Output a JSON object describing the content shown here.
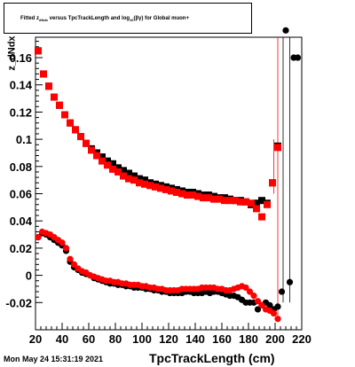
{
  "title": {
    "part1": "Fitted  z",
    "sub1": "dNdx",
    "part2": "  versus TpcTrackLength and log",
    "sub2": "10",
    "part3": "(βγ) for Global muon+"
  },
  "timestamp": "Mon May 24 15:31:19 2021",
  "colors": {
    "black_series": "#000000",
    "red_series": "#ff0000",
    "grid": "#000000"
  },
  "chart_data": {
    "type": "scatter",
    "title": "Fitted z_dNdx versus TpcTrackLength and log10(βγ) for Global muon+",
    "xlabel": "TpcTrackLength (cm)",
    "ylabel": "z_dNdx",
    "xlim": [
      20,
      220
    ],
    "ylim": [
      -0.04,
      0.175
    ],
    "grid": true,
    "legend": "none",
    "xticks": [
      20,
      40,
      60,
      80,
      100,
      120,
      140,
      160,
      180,
      200,
      220
    ],
    "xtick_labels": [
      "20",
      "40",
      "60",
      "80",
      "100",
      "120",
      "140",
      "160",
      "180",
      "200",
      "220"
    ],
    "yticks": [
      -0.02,
      0,
      0.02,
      0.04,
      0.06,
      0.08,
      0.1,
      0.12,
      0.14,
      0.16
    ],
    "ytick_labels": [
      "-0.02",
      "0",
      "0.02",
      "0.04",
      "0.06",
      "0.08",
      "0.1",
      "0.12",
      "0.14",
      "0.16"
    ],
    "series": [
      {
        "color": "#000000",
        "marker": "square",
        "x": [
          22,
          26,
          30,
          34,
          38,
          42,
          46,
          50,
          54,
          58,
          62,
          66,
          70,
          74,
          78,
          82,
          86,
          90,
          94,
          98,
          102,
          106,
          110,
          114,
          118,
          122,
          126,
          130,
          134,
          138,
          142,
          146,
          150,
          154,
          158,
          162,
          166,
          170,
          174,
          178,
          182,
          186,
          190,
          194,
          198,
          202
        ],
        "y": [
          0.165,
          0.148,
          0.139,
          0.131,
          0.125,
          0.118,
          0.112,
          0.107,
          0.102,
          0.097,
          0.093,
          0.09,
          0.087,
          0.084,
          0.082,
          0.079,
          0.077,
          0.075,
          0.073,
          0.071,
          0.07,
          0.068,
          0.067,
          0.066,
          0.065,
          0.064,
          0.063,
          0.062,
          0.061,
          0.061,
          0.06,
          0.059,
          0.059,
          0.058,
          0.057,
          0.057,
          0.056,
          0.055,
          0.055,
          0.054,
          0.052,
          0.053,
          0.055,
          0.053,
          0.068,
          0.095
        ]
      },
      {
        "color": "#ff0000",
        "marker": "square",
        "x": [
          22,
          26,
          30,
          34,
          38,
          42,
          46,
          50,
          54,
          58,
          62,
          66,
          70,
          74,
          78,
          82,
          86,
          90,
          94,
          98,
          102,
          106,
          110,
          114,
          118,
          122,
          126,
          130,
          134,
          138,
          142,
          146,
          150,
          154,
          158,
          162,
          166,
          170,
          174,
          178,
          182,
          186,
          190,
          194,
          198,
          202
        ],
        "y": [
          0.165,
          0.148,
          0.139,
          0.131,
          0.125,
          0.118,
          0.112,
          0.107,
          0.102,
          0.097,
          0.092,
          0.088,
          0.084,
          0.081,
          0.078,
          0.076,
          0.073,
          0.071,
          0.07,
          0.068,
          0.067,
          0.066,
          0.065,
          0.064,
          0.063,
          0.062,
          0.061,
          0.06,
          0.059,
          0.059,
          0.058,
          0.057,
          0.057,
          0.056,
          0.056,
          0.055,
          0.055,
          0.055,
          0.054,
          0.054,
          0.053,
          0.049,
          0.043,
          0.052,
          0.068,
          0.094
        ]
      },
      {
        "color": "#000000",
        "marker": "circle",
        "x": [
          22,
          25,
          28,
          31,
          34,
          37,
          40,
          43,
          46,
          49,
          52,
          55,
          58,
          61,
          64,
          67,
          70,
          73,
          76,
          79,
          82,
          85,
          88,
          91,
          94,
          97,
          100,
          103,
          106,
          109,
          112,
          115,
          118,
          121,
          124,
          127,
          130,
          133,
          136,
          139,
          142,
          145,
          148,
          151,
          154,
          157,
          160,
          163,
          166,
          169,
          172,
          175,
          178,
          181,
          184,
          187,
          190,
          193,
          196,
          199,
          202,
          205,
          208,
          211,
          214,
          217
        ],
        "y": [
          0.028,
          0.031,
          0.03,
          0.028,
          0.026,
          0.024,
          0.022,
          0.018,
          0.01,
          0.006,
          0.004,
          0.002,
          0.001,
          0.0,
          -0.002,
          -0.003,
          -0.004,
          -0.005,
          -0.006,
          -0.006,
          -0.007,
          -0.007,
          -0.008,
          -0.008,
          -0.009,
          -0.009,
          -0.009,
          -0.01,
          -0.01,
          -0.011,
          -0.011,
          -0.012,
          -0.012,
          -0.013,
          -0.013,
          -0.013,
          -0.013,
          -0.012,
          -0.012,
          -0.013,
          -0.013,
          -0.013,
          -0.012,
          -0.013,
          -0.012,
          -0.012,
          -0.013,
          -0.014,
          -0.015,
          -0.015,
          -0.016,
          -0.018,
          -0.02,
          -0.02,
          -0.02,
          -0.025,
          -0.022,
          -0.02,
          -0.022,
          -0.025,
          -0.023,
          -0.012,
          0.18,
          -0.005,
          0.16,
          0.16
        ]
      },
      {
        "color": "#ff0000",
        "marker": "circle",
        "x": [
          22,
          25,
          28,
          31,
          34,
          37,
          40,
          43,
          46,
          49,
          52,
          55,
          58,
          61,
          64,
          67,
          70,
          73,
          76,
          79,
          82,
          85,
          88,
          91,
          94,
          97,
          100,
          103,
          106,
          109,
          112,
          115,
          118,
          121,
          124,
          127,
          130,
          133,
          136,
          139,
          142,
          145,
          148,
          151,
          154,
          157,
          160,
          163,
          166,
          169,
          172,
          175,
          178,
          181,
          184,
          187,
          190,
          193,
          196,
          199,
          202
        ],
        "y": [
          0.028,
          0.032,
          0.031,
          0.03,
          0.028,
          0.026,
          0.024,
          0.02,
          0.012,
          0.008,
          0.005,
          0.003,
          0.002,
          0.0,
          -0.001,
          -0.002,
          -0.003,
          -0.004,
          -0.004,
          -0.005,
          -0.005,
          -0.006,
          -0.006,
          -0.007,
          -0.007,
          -0.007,
          -0.008,
          -0.008,
          -0.009,
          -0.009,
          -0.01,
          -0.01,
          -0.011,
          -0.011,
          -0.011,
          -0.011,
          -0.01,
          -0.01,
          -0.01,
          -0.01,
          -0.01,
          -0.009,
          -0.009,
          -0.009,
          -0.009,
          -0.01,
          -0.01,
          -0.011,
          -0.011,
          -0.01,
          -0.009,
          -0.008,
          -0.009,
          -0.012,
          -0.015,
          -0.019,
          -0.022,
          -0.025,
          -0.026,
          -0.028,
          -0.032
        ]
      }
    ]
  }
}
